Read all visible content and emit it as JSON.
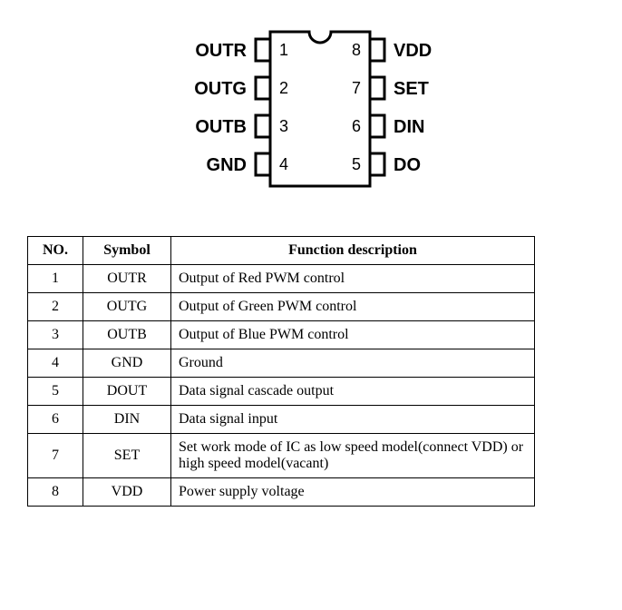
{
  "chip": {
    "body_stroke": "#000000",
    "body_fill": "#ffffff",
    "body_stroke_width": 3,
    "label_font_family": "Arial, Helvetica, sans-serif",
    "label_font_size": 20,
    "label_font_weight": "bold",
    "num_font_size": 18,
    "left_pins": [
      {
        "num": "1",
        "label": "OUTR"
      },
      {
        "num": "2",
        "label": "OUTG"
      },
      {
        "num": "3",
        "label": "OUTB"
      },
      {
        "num": "4",
        "label": "GND"
      }
    ],
    "right_pins": [
      {
        "num": "8",
        "label": "VDD"
      },
      {
        "num": "7",
        "label": "SET"
      },
      {
        "num": "6",
        "label": "DIN"
      },
      {
        "num": "5",
        "label": "DO"
      }
    ]
  },
  "table": {
    "headers": {
      "no": "NO.",
      "symbol": "Symbol",
      "desc": "Function description"
    },
    "rows": [
      {
        "no": "1",
        "symbol": "OUTR",
        "desc": "Output of Red PWM control"
      },
      {
        "no": "2",
        "symbol": "OUTG",
        "desc": "Output of Green PWM control"
      },
      {
        "no": "3",
        "symbol": "OUTB",
        "desc": "Output of Blue PWM control"
      },
      {
        "no": "4",
        "symbol": "GND",
        "desc": "Ground"
      },
      {
        "no": "5",
        "symbol": "DOUT",
        "desc": "Data signal cascade output"
      },
      {
        "no": "6",
        "symbol": "DIN",
        "desc": "Data signal input"
      },
      {
        "no": "7",
        "symbol": "SET",
        "desc": "Set work mode of IC as low speed model(connect VDD) or high speed model(vacant)"
      },
      {
        "no": "8",
        "symbol": "VDD",
        "desc": "Power supply voltage"
      }
    ]
  }
}
